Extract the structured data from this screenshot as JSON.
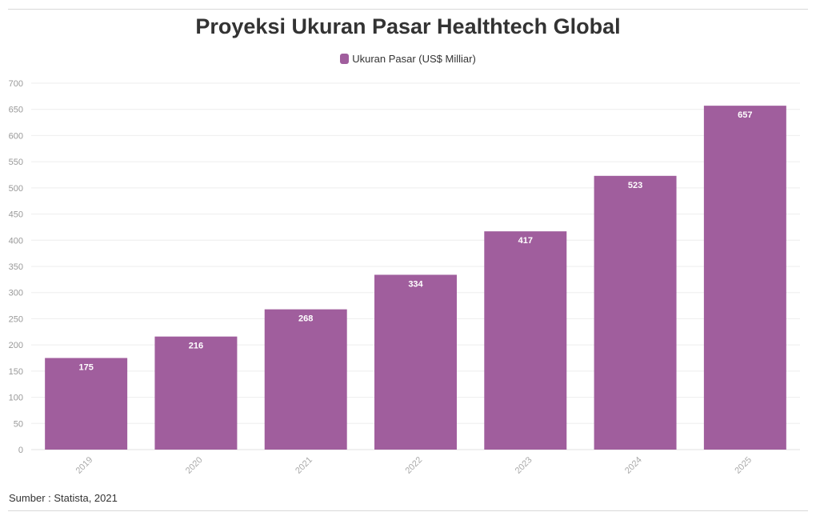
{
  "chart_data": {
    "type": "bar",
    "title": "Proyeksi Ukuran Pasar Healthtech Global",
    "xlabel": "",
    "ylabel": "",
    "categories": [
      "2019",
      "2020",
      "2021",
      "2022",
      "2023",
      "2024",
      "2025"
    ],
    "series": [
      {
        "name": "Ukuran Pasar (US$ Milliar)",
        "values": [
          175,
          216,
          268,
          334,
          417,
          523,
          657
        ],
        "color": "#a05e9d"
      }
    ],
    "ylim": [
      0,
      700
    ],
    "yticks": [
      0,
      50,
      100,
      150,
      200,
      250,
      300,
      350,
      400,
      450,
      500,
      550,
      600,
      650,
      700
    ],
    "grid": true,
    "legend_position": "top-center",
    "source": "Sumber : Statista, 2021"
  }
}
